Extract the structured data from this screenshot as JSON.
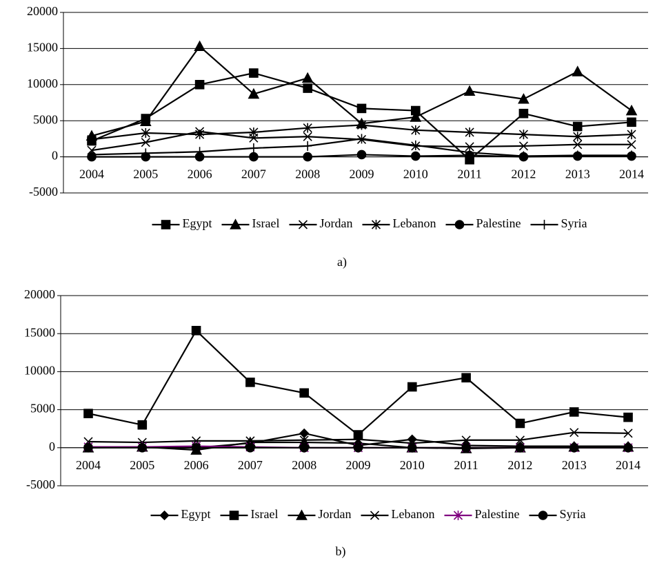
{
  "chart_data": [
    {
      "type": "line",
      "caption": "a)",
      "categories": [
        "2004",
        "2005",
        "2006",
        "2007",
        "2008",
        "2009",
        "2010",
        "2011",
        "2012",
        "2013",
        "2014"
      ],
      "ylim": [
        -5000,
        20000
      ],
      "yticks": [
        -5000,
        0,
        5000,
        10000,
        15000,
        20000
      ],
      "grid": true,
      "series": [
        {
          "name": "Egypt",
          "color": "#000000",
          "marker": "square",
          "values": [
            2200,
            5300,
            10000,
            11600,
            9500,
            6700,
            6400,
            -400,
            6000,
            4200,
            4800
          ]
        },
        {
          "name": "Israel",
          "color": "#000000",
          "marker": "triangle",
          "values": [
            2900,
            4900,
            15300,
            8700,
            10900,
            4600,
            5500,
            9100,
            8000,
            11800,
            6400
          ]
        },
        {
          "name": "Jordan",
          "color": "#000000",
          "marker": "x",
          "values": [
            900,
            2000,
            3500,
            2600,
            2800,
            2400,
            1500,
            1400,
            1500,
            1700,
            1700
          ]
        },
        {
          "name": "Lebanon",
          "color": "#000000",
          "marker": "star",
          "values": [
            2400,
            3300,
            3100,
            3400,
            4000,
            4400,
            3700,
            3400,
            3100,
            2800,
            3100
          ]
        },
        {
          "name": "Palestine",
          "color": "#000000",
          "marker": "circle",
          "values": [
            0,
            0,
            0,
            0,
            0,
            300,
            100,
            200,
            0,
            100,
            100
          ]
        },
        {
          "name": "Syria",
          "color": "#000000",
          "marker": "plus",
          "values": [
            300,
            500,
            700,
            1200,
            1500,
            2500,
            1600,
            600,
            100,
            200,
            200
          ]
        }
      ]
    },
    {
      "type": "line",
      "caption": "b)",
      "categories": [
        "2004",
        "2005",
        "2006",
        "2007",
        "2008",
        "2009",
        "2010",
        "2011",
        "2012",
        "2013",
        "2014"
      ],
      "ylim": [
        -5000,
        20000
      ],
      "yticks": [
        -5000,
        0,
        5000,
        10000,
        15000,
        20000
      ],
      "grid": true,
      "series": [
        {
          "name": "Egypt",
          "color": "#000000",
          "marker": "diamond",
          "values": [
            100,
            100,
            0,
            600,
            1900,
            300,
            1100,
            300,
            200,
            200,
            200
          ]
        },
        {
          "name": "Israel",
          "color": "#000000",
          "marker": "square",
          "values": [
            4500,
            3000,
            15400,
            8600,
            7200,
            1700,
            8000,
            9200,
            3200,
            4700,
            4000
          ]
        },
        {
          "name": "Jordan",
          "color": "#000000",
          "marker": "triangle",
          "values": [
            0,
            100,
            -300,
            700,
            700,
            600,
            0,
            -100,
            0,
            100,
            100
          ]
        },
        {
          "name": "Lebanon",
          "color": "#000000",
          "marker": "x",
          "values": [
            800,
            700,
            900,
            900,
            1000,
            1100,
            600,
            1000,
            1000,
            2000,
            1900
          ]
        },
        {
          "name": "Palestine",
          "color": "#7f007f",
          "marker": "star",
          "values": [
            100,
            100,
            200,
            100,
            0,
            0,
            0,
            0,
            0,
            0,
            0
          ]
        },
        {
          "name": "Syria",
          "color": "#000000",
          "marker": "circle",
          "values": [
            0,
            0,
            0,
            0,
            0,
            0,
            0,
            0,
            0,
            0,
            0
          ]
        }
      ]
    }
  ]
}
